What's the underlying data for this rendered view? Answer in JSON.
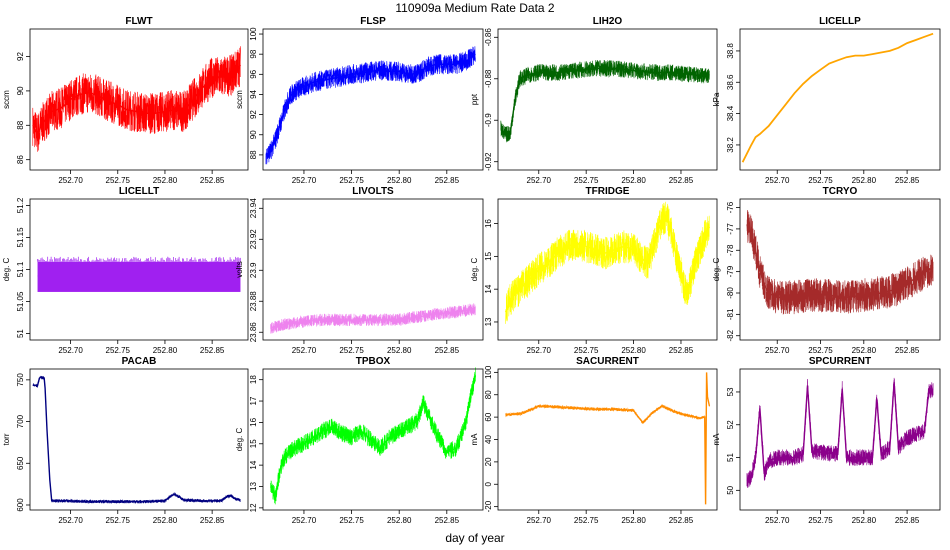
{
  "page": {
    "title": "110909a   Medium Rate Data 2",
    "xlabel": "day of year"
  },
  "chart_data": [
    {
      "type": "line",
      "title": "FLWT",
      "ylabel": "sccm",
      "color": "#ff0000",
      "xlim": [
        252.657,
        252.888
      ],
      "ylim": [
        85.4,
        93.6
      ],
      "xticks": [
        252.7,
        252.75,
        252.8,
        252.85
      ],
      "yticks": [
        86,
        88,
        90,
        92
      ],
      "series": [
        {
          "name": "FLWT",
          "x": [
            252.66,
            252.665,
            252.67,
            252.68,
            252.69,
            252.7,
            252.71,
            252.72,
            252.73,
            252.74,
            252.75,
            252.76,
            252.77,
            252.78,
            252.79,
            252.8,
            252.81,
            252.82,
            252.83,
            252.84,
            252.85,
            252.86,
            252.87,
            252.88
          ],
          "y": [
            88.0,
            87.5,
            88.1,
            88.8,
            89.0,
            89.5,
            89.8,
            89.9,
            89.7,
            89.4,
            89.2,
            88.9,
            88.8,
            88.7,
            88.7,
            88.8,
            88.9,
            88.8,
            89.5,
            90.2,
            90.8,
            90.8,
            90.9,
            91.5
          ]
        }
      ],
      "band": 1.2
    },
    {
      "type": "line",
      "title": "FLSP",
      "ylabel": "sccm",
      "color": "#0000ff",
      "xlim": [
        252.657,
        252.888
      ],
      "ylim": [
        86.5,
        100.5
      ],
      "xticks": [
        252.7,
        252.75,
        252.8,
        252.85
      ],
      "yticks": [
        88,
        90,
        92,
        94,
        96,
        98,
        100
      ],
      "series": [
        {
          "name": "FLSP",
          "x": [
            252.66,
            252.665,
            252.67,
            252.675,
            252.68,
            252.685,
            252.69,
            252.7,
            252.71,
            252.72,
            252.73,
            252.74,
            252.75,
            252.76,
            252.77,
            252.78,
            252.79,
            252.8,
            252.81,
            252.82,
            252.83,
            252.84,
            252.85,
            252.86,
            252.87,
            252.88
          ],
          "y": [
            88.0,
            88.3,
            89.5,
            91.0,
            92.5,
            93.8,
            94.3,
            94.8,
            95.2,
            95.4,
            95.6,
            95.8,
            96.0,
            96.1,
            96.3,
            96.4,
            96.3,
            96.3,
            96.0,
            96.1,
            96.8,
            97.0,
            97.0,
            97.0,
            97.3,
            98.0
          ]
        }
      ],
      "band": 1.0
    },
    {
      "type": "line",
      "title": "LIH2O",
      "ylabel": "ppt",
      "color": "#006400",
      "xlim": [
        252.657,
        252.888
      ],
      "ylim": [
        -0.924,
        -0.856
      ],
      "xticks": [
        252.7,
        252.75,
        252.8,
        252.85
      ],
      "yticks": [
        -0.92,
        -0.9,
        -0.88,
        -0.86
      ],
      "series": [
        {
          "name": "LIH2O",
          "x": [
            252.66,
            252.665,
            252.67,
            252.675,
            252.68,
            252.69,
            252.7,
            252.72,
            252.74,
            252.76,
            252.78,
            252.8,
            252.82,
            252.84,
            252.86,
            252.88
          ],
          "y": [
            -0.904,
            -0.907,
            -0.906,
            -0.89,
            -0.88,
            -0.878,
            -0.877,
            -0.877,
            -0.876,
            -0.875,
            -0.875,
            -0.876,
            -0.877,
            -0.877,
            -0.878,
            -0.879
          ]
        }
      ],
      "band": 0.004
    },
    {
      "type": "line",
      "title": "LICELLP",
      "ylabel": "kPa",
      "color": "#ffa500",
      "xlim": [
        252.657,
        252.888
      ],
      "ylim": [
        38.04,
        38.94
      ],
      "xticks": [
        252.7,
        252.75,
        252.8,
        252.85
      ],
      "yticks": [
        38.2,
        38.4,
        38.6,
        38.8
      ],
      "series": [
        {
          "name": "LICELLP",
          "x": [
            252.66,
            252.67,
            252.675,
            252.68,
            252.69,
            252.7,
            252.71,
            252.72,
            252.73,
            252.74,
            252.75,
            252.76,
            252.77,
            252.78,
            252.79,
            252.8,
            252.81,
            252.82,
            252.83,
            252.84,
            252.85,
            252.86,
            252.87,
            252.88
          ],
          "y": [
            38.09,
            38.2,
            38.25,
            38.27,
            38.32,
            38.39,
            38.46,
            38.53,
            38.59,
            38.64,
            38.68,
            38.72,
            38.74,
            38.76,
            38.77,
            38.77,
            38.78,
            38.79,
            38.8,
            38.82,
            38.85,
            38.87,
            38.89,
            38.91
          ]
        }
      ],
      "band": 0
    },
    {
      "type": "line",
      "title": "LICELLT",
      "ylabel": "deg. C",
      "color": "#a020f0",
      "xlim": [
        252.657,
        252.888
      ],
      "ylim": [
        50.99,
        51.21
      ],
      "xticks": [
        252.7,
        252.75,
        252.8,
        252.85
      ],
      "yticks": [
        51.0,
        51.05,
        51.1,
        51.15,
        51.2
      ],
      "series": [
        {
          "name": "LICELLT",
          "x": [
            252.665,
            252.88
          ],
          "y": [
            51.09,
            51.09
          ]
        }
      ],
      "band": 0.0,
      "fill_low": 51.065,
      "fill_high": 51.112,
      "spike_high": 51.12
    },
    {
      "type": "line",
      "title": "LIVOLTS",
      "ylabel": "volts",
      "color": "#ee82ee",
      "xlim": [
        252.657,
        252.888
      ],
      "ylim": [
        23.855,
        23.946
      ],
      "xticks": [
        252.7,
        252.75,
        252.8,
        252.85
      ],
      "yticks": [
        23.86,
        23.88,
        23.9,
        23.92,
        23.94
      ],
      "series": [
        {
          "name": "LIVOLTS",
          "x": [
            252.665,
            252.68,
            252.7,
            252.72,
            252.74,
            252.76,
            252.78,
            252.8,
            252.82,
            252.84,
            252.86,
            252.88
          ],
          "y": [
            23.863,
            23.865,
            23.867,
            23.868,
            23.868,
            23.868,
            23.868,
            23.868,
            23.87,
            23.872,
            23.873,
            23.875
          ]
        }
      ],
      "band": 0.004
    },
    {
      "type": "line",
      "title": "TFRIDGE",
      "ylabel": "deg. C",
      "color": "#ffff00",
      "xlim": [
        252.657,
        252.888
      ],
      "ylim": [
        12.45,
        16.75
      ],
      "xticks": [
        252.7,
        252.75,
        252.8,
        252.85
      ],
      "yticks": [
        13,
        14,
        15,
        16
      ],
      "series": [
        {
          "name": "TFRIDGE",
          "x": [
            252.665,
            252.67,
            252.68,
            252.69,
            252.7,
            252.71,
            252.72,
            252.73,
            252.74,
            252.75,
            252.76,
            252.77,
            252.78,
            252.79,
            252.8,
            252.81,
            252.815,
            252.82,
            252.825,
            252.83,
            252.835,
            252.84,
            252.845,
            252.85,
            252.855,
            252.86,
            252.865,
            252.87,
            252.875,
            252.88
          ],
          "y": [
            13.3,
            13.7,
            14.0,
            14.3,
            14.6,
            14.8,
            15.1,
            15.3,
            15.4,
            15.3,
            15.2,
            15.1,
            15.2,
            15.3,
            15.2,
            14.9,
            14.8,
            15.2,
            15.7,
            16.1,
            16.2,
            15.7,
            15.0,
            14.5,
            13.9,
            14.2,
            14.8,
            15.2,
            15.6,
            15.9
          ]
        }
      ],
      "band": 0.5
    },
    {
      "type": "line",
      "title": "TCRYO",
      "ylabel": "deg. C",
      "color": "#a52a2a",
      "xlim": [
        252.657,
        252.888
      ],
      "ylim": [
        -82.2,
        -75.6
      ],
      "xticks": [
        252.7,
        252.75,
        252.8,
        252.85
      ],
      "yticks": [
        -82,
        -81,
        -80,
        -79,
        -78,
        -77,
        -76
      ],
      "series": [
        {
          "name": "TCRYO",
          "x": [
            252.665,
            252.67,
            252.675,
            252.68,
            252.685,
            252.69,
            252.7,
            252.72,
            252.74,
            252.76,
            252.78,
            252.8,
            252.82,
            252.84,
            252.86,
            252.88
          ],
          "y": [
            -76.8,
            -77.2,
            -78.0,
            -79.0,
            -79.6,
            -80.0,
            -80.2,
            -80.2,
            -80.1,
            -80.1,
            -80.2,
            -80.1,
            -80.0,
            -79.8,
            -79.3,
            -78.8
          ]
        }
      ],
      "band": 0.8
    },
    {
      "type": "line",
      "title": "PACAB",
      "ylabel": "torr",
      "color": "#000080",
      "xlim": [
        252.657,
        252.888
      ],
      "ylim": [
        594,
        763
      ],
      "xticks": [
        252.7,
        252.75,
        252.8,
        252.85
      ],
      "yticks": [
        600,
        650,
        700,
        750
      ],
      "series": [
        {
          "name": "PACAB",
          "x": [
            252.66,
            252.665,
            252.667,
            252.668,
            252.672,
            252.673,
            252.675,
            252.678,
            252.68,
            252.7,
            252.72,
            252.74,
            252.76,
            252.78,
            252.8,
            252.805,
            252.81,
            252.815,
            252.82,
            252.84,
            252.86,
            252.865,
            252.87,
            252.875,
            252.88
          ],
          "y": [
            744,
            743,
            752,
            753,
            752,
            740,
            690,
            630,
            605,
            605,
            604,
            604,
            604,
            604,
            605,
            610,
            613,
            610,
            606,
            605,
            605,
            610,
            611,
            607,
            606
          ]
        }
      ],
      "band": 2
    },
    {
      "type": "line",
      "title": "TPBOX",
      "ylabel": "deg. C",
      "color": "#00ff00",
      "xlim": [
        252.657,
        252.888
      ],
      "ylim": [
        11.9,
        18.5
      ],
      "xticks": [
        252.7,
        252.75,
        252.8,
        252.85
      ],
      "yticks": [
        12,
        13,
        14,
        15,
        16,
        17,
        18
      ],
      "series": [
        {
          "name": "TPBOX",
          "x": [
            252.665,
            252.67,
            252.675,
            252.68,
            252.69,
            252.7,
            252.71,
            252.72,
            252.73,
            252.74,
            252.75,
            252.76,
            252.77,
            252.78,
            252.79,
            252.8,
            252.81,
            252.82,
            252.825,
            252.83,
            252.84,
            252.85,
            252.86,
            252.865,
            252.87,
            252.875,
            252.88
          ],
          "y": [
            13.0,
            12.5,
            13.8,
            14.4,
            14.8,
            15.0,
            15.3,
            15.6,
            15.8,
            15.5,
            15.3,
            15.6,
            15.2,
            14.8,
            15.3,
            15.6,
            15.8,
            16.1,
            17.0,
            16.4,
            15.4,
            14.6,
            14.8,
            15.4,
            16.0,
            17.2,
            18.2
          ]
        }
      ],
      "band": 0.4
    },
    {
      "type": "line",
      "title": "SACURRENT",
      "ylabel": "mA",
      "color": "#ff8c00",
      "xlim": [
        252.657,
        252.888
      ],
      "ylim": [
        -23,
        103
      ],
      "xticks": [
        252.7,
        252.75,
        252.8,
        252.85
      ],
      "yticks": [
        -20,
        0,
        20,
        40,
        60,
        80,
        100
      ],
      "series": [
        {
          "name": "SACURRENT",
          "x": [
            252.665,
            252.68,
            252.69,
            252.7,
            252.72,
            252.74,
            252.76,
            252.78,
            252.8,
            252.805,
            252.81,
            252.82,
            252.83,
            252.84,
            252.85,
            252.86,
            252.87,
            252.875,
            252.876,
            252.877,
            252.878,
            252.88
          ],
          "y": [
            62,
            63,
            66,
            70,
            69,
            68,
            67,
            67,
            66,
            60,
            55,
            64,
            70,
            66,
            63,
            61,
            59,
            60,
            -18,
            100,
            78,
            70
          ]
        }
      ],
      "band": 1.5
    },
    {
      "type": "line",
      "title": "SPCURRENT",
      "ylabel": "mA",
      "color": "#8b008b",
      "xlim": [
        252.657,
        252.888
      ],
      "ylim": [
        49.4,
        53.7
      ],
      "xticks": [
        252.7,
        252.75,
        252.8,
        252.85
      ],
      "yticks": [
        50,
        51,
        52,
        53
      ],
      "series": [
        {
          "name": "SPCURRENT",
          "x": [
            252.665,
            252.67,
            252.675,
            252.68,
            252.685,
            252.69,
            252.7,
            252.72,
            252.73,
            252.735,
            252.74,
            252.77,
            252.775,
            252.78,
            252.8,
            252.81,
            252.815,
            252.82,
            252.83,
            252.835,
            252.84,
            252.85,
            252.86,
            252.87,
            252.875,
            252.88
          ],
          "y": [
            50.3,
            50.4,
            51.0,
            52.5,
            50.5,
            50.9,
            51.0,
            51.0,
            51.1,
            53.2,
            51.2,
            51.1,
            53.1,
            51.0,
            51.0,
            51.0,
            52.8,
            51.1,
            51.3,
            53.3,
            51.3,
            51.6,
            51.7,
            51.8,
            53.0,
            53.1
          ]
        }
      ],
      "band": 0.25
    }
  ]
}
